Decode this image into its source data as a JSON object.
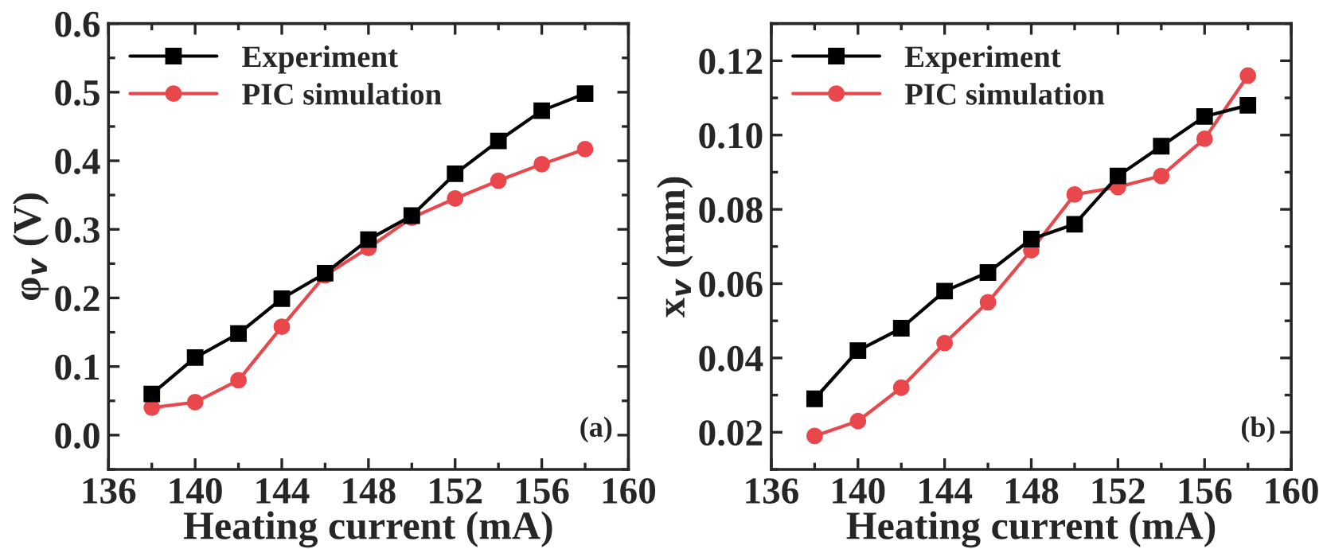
{
  "chart_data": [
    {
      "type": "line",
      "xlabel": "Heating current (mA)",
      "ylabel": "φ$_{v}$ (V)",
      "annotations": [
        "(a)"
      ],
      "x": [
        138,
        140,
        142,
        144,
        146,
        148,
        150,
        152,
        154,
        156,
        158
      ],
      "series": [
        {
          "name": "Experiment",
          "color": "#000000",
          "marker": "square",
          "values": [
            0.06,
            0.113,
            0.148,
            0.199,
            0.236,
            0.285,
            0.32,
            0.381,
            0.429,
            0.473,
            0.498
          ]
        },
        {
          "name": "PIC simulation",
          "color": "#e8474c",
          "marker": "circle",
          "values": [
            0.04,
            0.048,
            0.08,
            0.158,
            0.233,
            0.273,
            0.317,
            0.345,
            0.371,
            0.395,
            0.417
          ]
        }
      ],
      "xlim": [
        136,
        160
      ],
      "xticks": [
        136,
        140,
        144,
        148,
        152,
        156,
        160
      ],
      "ylim": [
        -0.05,
        0.6
      ],
      "yticks": [
        {
          "value": 0,
          "label": "0.0"
        },
        0.1,
        0.2,
        0.3,
        0.4,
        0.5,
        0.6
      ],
      "grid": false,
      "legend": "top left"
    },
    {
      "type": "line",
      "xlabel": "Heating current (mA)",
      "ylabel": "x$_{v}$ (mm)",
      "annotations": [
        "(b)"
      ],
      "x": [
        138,
        140,
        142,
        144,
        146,
        148,
        150,
        152,
        154,
        156,
        158
      ],
      "series": [
        {
          "name": "Experiment",
          "color": "#000000",
          "marker": "square",
          "values": [
            0.029,
            0.042,
            0.048,
            0.058,
            0.063,
            0.072,
            0.076,
            0.089,
            0.097,
            0.105,
            0.108
          ]
        },
        {
          "name": "PIC simulation",
          "color": "#e8474c",
          "marker": "circle",
          "values": [
            0.019,
            0.023,
            0.032,
            0.044,
            0.055,
            0.069,
            0.084,
            0.086,
            0.089,
            0.099,
            0.116
          ]
        }
      ],
      "xlim": [
        136,
        160
      ],
      "xticks": [
        136,
        140,
        144,
        148,
        152,
        156,
        160
      ],
      "ylim": [
        0.01,
        0.13
      ],
      "yticks": [
        0.02,
        0.04,
        0.06,
        0.08,
        {
          "value": 0.1,
          "label": "0.10"
        },
        0.12
      ],
      "grid": false,
      "legend": "top left"
    }
  ]
}
